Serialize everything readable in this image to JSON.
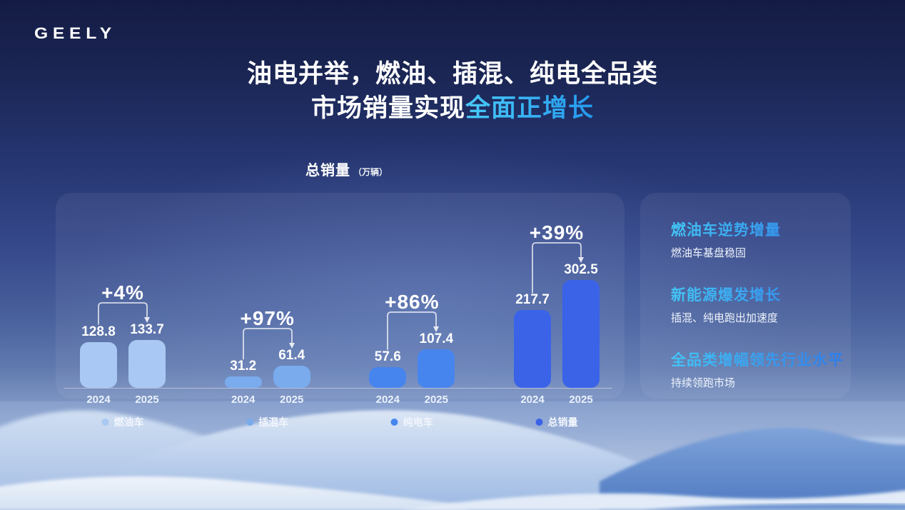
{
  "logo": "GEELY",
  "title": {
    "line1": "油电并举，燃油、插混、纯电全品类",
    "line2_white": "市场销量实现",
    "line2_accent": "全面正增长"
  },
  "chart_heading": {
    "main": "总销量",
    "unit": "（万辆）"
  },
  "chart_data": {
    "type": "bar",
    "title": "总销量（万辆）",
    "ylabel": "万辆",
    "ylim": [
      0,
      320
    ],
    "grid": false,
    "categories": [
      "2024",
      "2025"
    ],
    "groups": [
      {
        "name": "燃油车",
        "values": [
          128.8,
          133.7
        ],
        "growth": "+4%",
        "color": "#a9c8f3"
      },
      {
        "name": "插混车",
        "values": [
          31.2,
          61.4
        ],
        "growth": "+97%",
        "color": "#79abed"
      },
      {
        "name": "纯电车",
        "values": [
          57.6,
          107.4
        ],
        "growth": "+86%",
        "color": "#4785ee"
      },
      {
        "name": "总销量",
        "values": [
          217.7,
          302.5
        ],
        "growth": "+39%",
        "color": "#3a63e8"
      }
    ],
    "legend_position": "bottom"
  },
  "side_panel": {
    "items": [
      {
        "heading": "燃油车逆势增量",
        "sub": "燃油车基盘稳固"
      },
      {
        "heading": "新能源爆发增长",
        "sub": "插混、纯电跑出加速度"
      },
      {
        "heading": "全品类增幅领先行业水平",
        "sub": "持续领跑市场"
      }
    ]
  },
  "colors": {
    "accent_cyan": "#43c6f6",
    "accent_blue": "#2e7ceb",
    "background_top": "#141c44",
    "axis_line": "rgba(255,255,255,0.42)"
  }
}
